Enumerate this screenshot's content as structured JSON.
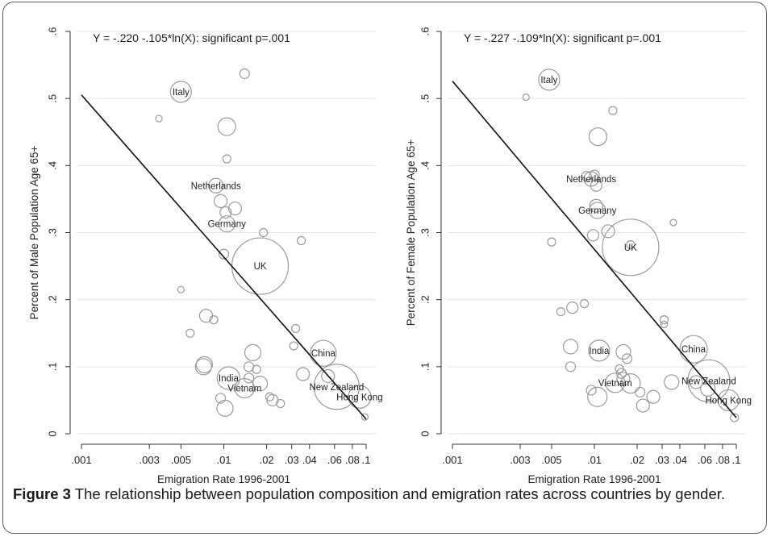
{
  "figure": {
    "caption_label": "Figure 3",
    "caption_text": " The relationship between population composition and emigration rates across countries by gender."
  },
  "chart_data": [
    {
      "type": "scatter",
      "annotation": "Y =  -.220  -.105*ln(X): significant p=.001",
      "xlabel": "Emigration Rate 1996-2001",
      "ylabel": "Percent of Male Population Age 65+",
      "x_scale": "log",
      "xlim": [
        0.001,
        0.1
      ],
      "ylim": [
        0,
        0.6
      ],
      "x_ticks": [
        {
          "value": 0.001,
          "label": ".001"
        },
        {
          "value": 0.003,
          "label": ".003"
        },
        {
          "value": 0.005,
          "label": ".005"
        },
        {
          "value": 0.01,
          "label": ".01"
        },
        {
          "value": 0.02,
          "label": ".02"
        },
        {
          "value": 0.03,
          "label": ".03"
        },
        {
          "value": 0.04,
          "label": ".04"
        },
        {
          "value": 0.06,
          "label": ".06"
        },
        {
          "value": 0.08,
          "label": ".08"
        },
        {
          "value": 0.1,
          "label": ".1"
        }
      ],
      "y_ticks": [
        {
          "value": 0,
          "label": "0"
        },
        {
          "value": 0.1,
          "label": ".1"
        },
        {
          "value": 0.2,
          "label": ".2"
        },
        {
          "value": 0.3,
          "label": ".3"
        },
        {
          "value": 0.4,
          "label": ".4"
        },
        {
          "value": 0.5,
          "label": ".5"
        },
        {
          "value": 0.6,
          "label": ".6"
        }
      ],
      "grid": true,
      "fit_line": {
        "intercept": -0.22,
        "slope": -0.105,
        "x_start": 0.001,
        "x_end": 0.1
      },
      "points": [
        {
          "x": 0.005,
          "y": 0.51,
          "size": 13,
          "label": "Italy"
        },
        {
          "x": 0.0035,
          "y": 0.47,
          "size": 4
        },
        {
          "x": 0.014,
          "y": 0.537,
          "size": 6
        },
        {
          "x": 0.0105,
          "y": 0.458,
          "size": 11
        },
        {
          "x": 0.0105,
          "y": 0.41,
          "size": 5
        },
        {
          "x": 0.0088,
          "y": 0.37,
          "size": 9,
          "label": "Netherlands"
        },
        {
          "x": 0.0095,
          "y": 0.347,
          "size": 8
        },
        {
          "x": 0.0103,
          "y": 0.33,
          "size": 7
        },
        {
          "x": 0.012,
          "y": 0.336,
          "size": 8
        },
        {
          "x": 0.0105,
          "y": 0.313,
          "size": 10,
          "label": "Germany"
        },
        {
          "x": 0.019,
          "y": 0.3,
          "size": 5
        },
        {
          "x": 0.035,
          "y": 0.288,
          "size": 5
        },
        {
          "x": 0.01,
          "y": 0.268,
          "size": 6
        },
        {
          "x": 0.018,
          "y": 0.25,
          "size": 35,
          "label": "UK"
        },
        {
          "x": 0.005,
          "y": 0.215,
          "size": 4
        },
        {
          "x": 0.0075,
          "y": 0.176,
          "size": 8
        },
        {
          "x": 0.0085,
          "y": 0.17,
          "size": 5
        },
        {
          "x": 0.0058,
          "y": 0.15,
          "size": 5
        },
        {
          "x": 0.032,
          "y": 0.157,
          "size": 5
        },
        {
          "x": 0.016,
          "y": 0.121,
          "size": 10
        },
        {
          "x": 0.031,
          "y": 0.131,
          "size": 5
        },
        {
          "x": 0.05,
          "y": 0.12,
          "size": 16,
          "label": "China"
        },
        {
          "x": 0.0073,
          "y": 0.103,
          "size": 10
        },
        {
          "x": 0.0072,
          "y": 0.1,
          "size": 10
        },
        {
          "x": 0.015,
          "y": 0.1,
          "size": 6
        },
        {
          "x": 0.017,
          "y": 0.096,
          "size": 5
        },
        {
          "x": 0.036,
          "y": 0.089,
          "size": 8
        },
        {
          "x": 0.0108,
          "y": 0.083,
          "size": 14,
          "label": "India"
        },
        {
          "x": 0.015,
          "y": 0.083,
          "size": 6
        },
        {
          "x": 0.018,
          "y": 0.075,
          "size": 9
        },
        {
          "x": 0.014,
          "y": 0.068,
          "size": 12,
          "label": "Vietnam"
        },
        {
          "x": 0.054,
          "y": 0.086,
          "size": 8
        },
        {
          "x": 0.062,
          "y": 0.07,
          "size": 28,
          "label": "New Zealand"
        },
        {
          "x": 0.0095,
          "y": 0.053,
          "size": 6
        },
        {
          "x": 0.021,
          "y": 0.055,
          "size": 5
        },
        {
          "x": 0.022,
          "y": 0.05,
          "size": 7
        },
        {
          "x": 0.025,
          "y": 0.045,
          "size": 5
        },
        {
          "x": 0.0102,
          "y": 0.038,
          "size": 10
        },
        {
          "x": 0.09,
          "y": 0.055,
          "size": 14,
          "label": "Hong Kong"
        },
        {
          "x": 0.098,
          "y": 0.025,
          "size": 4
        }
      ]
    },
    {
      "type": "scatter",
      "annotation": "Y =  -.227  -.109*ln(X): significant p=.001",
      "xlabel": "Emigration Rate 1996-2001",
      "ylabel": "Percent of Female Population Age 65+",
      "x_scale": "log",
      "xlim": [
        0.001,
        0.1
      ],
      "ylim": [
        0,
        0.6
      ],
      "x_ticks": [
        {
          "value": 0.001,
          "label": ".001"
        },
        {
          "value": 0.003,
          "label": ".003"
        },
        {
          "value": 0.005,
          "label": ".005"
        },
        {
          "value": 0.01,
          "label": ".01"
        },
        {
          "value": 0.02,
          "label": ".02"
        },
        {
          "value": 0.03,
          "label": ".03"
        },
        {
          "value": 0.04,
          "label": ".04"
        },
        {
          "value": 0.06,
          "label": ".06"
        },
        {
          "value": 0.08,
          "label": ".08"
        },
        {
          "value": 0.1,
          "label": ".1"
        }
      ],
      "y_ticks": [
        {
          "value": 0,
          "label": "0"
        },
        {
          "value": 0.1,
          "label": ".1"
        },
        {
          "value": 0.2,
          "label": ".2"
        },
        {
          "value": 0.3,
          "label": ".3"
        },
        {
          "value": 0.4,
          "label": ".4"
        },
        {
          "value": 0.5,
          "label": ".5"
        },
        {
          "value": 0.6,
          "label": ".6"
        }
      ],
      "grid": true,
      "fit_line": {
        "intercept": -0.227,
        "slope": -0.109,
        "x_start": 0.001,
        "x_end": 0.1
      },
      "points": [
        {
          "x": 0.0048,
          "y": 0.528,
          "size": 13,
          "label": "Italy"
        },
        {
          "x": 0.0033,
          "y": 0.502,
          "size": 4
        },
        {
          "x": 0.0135,
          "y": 0.482,
          "size": 5
        },
        {
          "x": 0.0106,
          "y": 0.443,
          "size": 11
        },
        {
          "x": 0.0095,
          "y": 0.38,
          "size": 9,
          "label": "Netherlands"
        },
        {
          "x": 0.0088,
          "y": 0.384,
          "size": 6
        },
        {
          "x": 0.01,
          "y": 0.386,
          "size": 6
        },
        {
          "x": 0.0103,
          "y": 0.37,
          "size": 7
        },
        {
          "x": 0.0103,
          "y": 0.34,
          "size": 8
        },
        {
          "x": 0.0105,
          "y": 0.333,
          "size": 10,
          "label": "Germany"
        },
        {
          "x": 0.0125,
          "y": 0.302,
          "size": 8
        },
        {
          "x": 0.0098,
          "y": 0.296,
          "size": 7
        },
        {
          "x": 0.005,
          "y": 0.286,
          "size": 5
        },
        {
          "x": 0.036,
          "y": 0.315,
          "size": 4
        },
        {
          "x": 0.018,
          "y": 0.282,
          "size": 5
        },
        {
          "x": 0.018,
          "y": 0.278,
          "size": 35,
          "label": "UK"
        },
        {
          "x": 0.0058,
          "y": 0.182,
          "size": 5
        },
        {
          "x": 0.007,
          "y": 0.188,
          "size": 7
        },
        {
          "x": 0.0085,
          "y": 0.194,
          "size": 5
        },
        {
          "x": 0.031,
          "y": 0.17,
          "size": 5
        },
        {
          "x": 0.031,
          "y": 0.163,
          "size": 4
        },
        {
          "x": 0.016,
          "y": 0.122,
          "size": 9
        },
        {
          "x": 0.017,
          "y": 0.112,
          "size": 6
        },
        {
          "x": 0.0068,
          "y": 0.13,
          "size": 9
        },
        {
          "x": 0.0068,
          "y": 0.1,
          "size": 6
        },
        {
          "x": 0.0108,
          "y": 0.124,
          "size": 13,
          "label": "India"
        },
        {
          "x": 0.015,
          "y": 0.097,
          "size": 5
        },
        {
          "x": 0.0155,
          "y": 0.09,
          "size": 6
        },
        {
          "x": 0.05,
          "y": 0.126,
          "size": 17,
          "label": "China"
        },
        {
          "x": 0.016,
          "y": 0.082,
          "size": 8
        },
        {
          "x": 0.014,
          "y": 0.076,
          "size": 12,
          "label": "Vietnam"
        },
        {
          "x": 0.018,
          "y": 0.075,
          "size": 12
        },
        {
          "x": 0.035,
          "y": 0.077,
          "size": 9
        },
        {
          "x": 0.052,
          "y": 0.077,
          "size": 8
        },
        {
          "x": 0.064,
          "y": 0.079,
          "size": 26,
          "label": "New Zealand"
        },
        {
          "x": 0.063,
          "y": 0.067,
          "size": 9
        },
        {
          "x": 0.0095,
          "y": 0.065,
          "size": 6
        },
        {
          "x": 0.021,
          "y": 0.062,
          "size": 6
        },
        {
          "x": 0.026,
          "y": 0.055,
          "size": 8
        },
        {
          "x": 0.0105,
          "y": 0.055,
          "size": 12
        },
        {
          "x": 0.022,
          "y": 0.042,
          "size": 8
        },
        {
          "x": 0.088,
          "y": 0.05,
          "size": 13,
          "label": "Hong Kong"
        },
        {
          "x": 0.097,
          "y": 0.024,
          "size": 5
        }
      ]
    }
  ]
}
